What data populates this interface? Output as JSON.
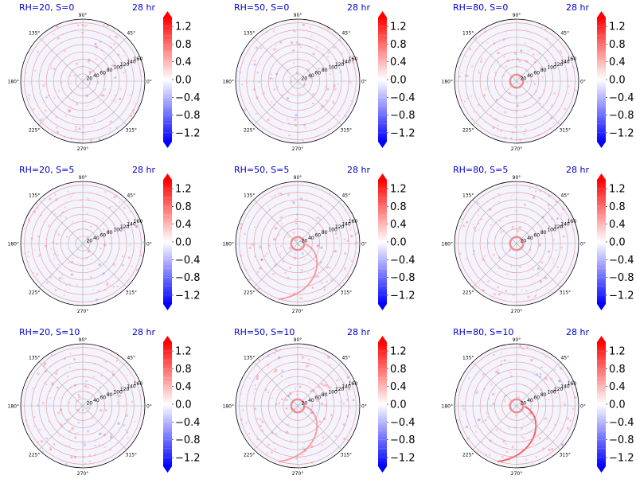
{
  "figure": {
    "colors": {
      "negative": "#0000ff",
      "zero": "#ffffff",
      "positive": "#ff0000",
      "title": "#0000cc",
      "polar_background": "#f3f4fd",
      "grid": "#b0b0b0",
      "rings": "#f08a8a"
    }
  },
  "chart_data": [
    {
      "type": "heatmap",
      "projection": "polar",
      "title": "RH=20, S=0",
      "time_label": "28 hr",
      "theta_tick_labels": [
        "0°",
        "45°",
        "90°",
        "135°",
        "180°",
        "225°",
        "270°",
        "315°"
      ],
      "r_tick_labels": [
        "20",
        "40",
        "60",
        "80",
        "100",
        "120",
        "140",
        "160"
      ],
      "r_range": [
        0,
        170
      ],
      "colorbar": {
        "ticks": [
          "1.2",
          "0.8",
          "0.4",
          "0.0",
          "−0.4",
          "−0.8",
          "−1.2"
        ],
        "range": [
          -1.4,
          1.4
        ],
        "extend": "both"
      },
      "field_values": "faint positive rings with scattered weak values, mostly near 0.0 to 0.2"
    },
    {
      "type": "heatmap",
      "projection": "polar",
      "title": "RH=50, S=0",
      "time_label": "28 hr",
      "theta_tick_labels": [
        "0°",
        "45°",
        "90°",
        "135°",
        "180°",
        "225°",
        "270°",
        "315°"
      ],
      "r_tick_labels": [
        "20",
        "40",
        "60",
        "80",
        "100",
        "120",
        "140",
        "160"
      ],
      "r_range": [
        0,
        170
      ],
      "colorbar": {
        "ticks": [
          "1.2",
          "0.8",
          "0.4",
          "0.0",
          "−0.4",
          "−0.8",
          "−1.2"
        ],
        "range": [
          -1.4,
          1.4
        ],
        "extend": "both"
      },
      "field_values": "weak positive speckle across the domain"
    },
    {
      "type": "heatmap",
      "projection": "polar",
      "title": "RH=80, S=0",
      "time_label": "28 hr",
      "theta_tick_labels": [
        "0°",
        "45°",
        "90°",
        "135°",
        "180°",
        "225°",
        "270°",
        "315°"
      ],
      "r_tick_labels": [
        "20",
        "40",
        "60",
        "80",
        "100",
        "120",
        "140",
        "160"
      ],
      "r_range": [
        0,
        170
      ],
      "colorbar": {
        "ticks": [
          "1.2",
          "0.8",
          "0.4",
          "0.0",
          "−0.4",
          "−0.8",
          "−1.2"
        ],
        "range": [
          -1.4,
          1.4
        ],
        "extend": "both"
      },
      "field_values": "positive ring near the center (~20) plus weak outer speckle"
    },
    {
      "type": "heatmap",
      "projection": "polar",
      "title": "RH=20, S=5",
      "time_label": "28 hr",
      "theta_tick_labels": [
        "0°",
        "45°",
        "90°",
        "135°",
        "180°",
        "225°",
        "270°",
        "315°"
      ],
      "r_tick_labels": [
        "20",
        "40",
        "60",
        "80",
        "100",
        "120",
        "140",
        "160"
      ],
      "r_range": [
        0,
        170
      ],
      "colorbar": {
        "ticks": [
          "1.2",
          "0.8",
          "0.4",
          "0.0",
          "−0.4",
          "−0.8",
          "−1.2"
        ],
        "range": [
          -1.4,
          1.4
        ],
        "extend": "both"
      },
      "field_values": "faint scattered positive values"
    },
    {
      "type": "heatmap",
      "projection": "polar",
      "title": "RH=50, S=5",
      "time_label": "28 hr",
      "theta_tick_labels": [
        "0°",
        "45°",
        "90°",
        "135°",
        "180°",
        "225°",
        "270°",
        "315°"
      ],
      "r_tick_labels": [
        "20",
        "40",
        "60",
        "80",
        "100",
        "120",
        "140",
        "160"
      ],
      "r_range": [
        0,
        170
      ],
      "colorbar": {
        "ticks": [
          "1.2",
          "0.8",
          "0.4",
          "0.0",
          "−0.4",
          "−0.8",
          "−1.2"
        ],
        "range": [
          -1.4,
          1.4
        ],
        "extend": "both"
      },
      "field_values": "positive features near the center and along the lower-right quadrant"
    },
    {
      "type": "heatmap",
      "projection": "polar",
      "title": "RH=80, S=5",
      "time_label": "28 hr",
      "theta_tick_labels": [
        "0°",
        "45°",
        "90°",
        "135°",
        "180°",
        "225°",
        "270°",
        "315°"
      ],
      "r_tick_labels": [
        "20",
        "40",
        "60",
        "80",
        "100",
        "120",
        "140",
        "160"
      ],
      "r_range": [
        0,
        170
      ],
      "colorbar": {
        "ticks": [
          "1.2",
          "0.8",
          "0.4",
          "0.0",
          "−0.4",
          "−0.8",
          "−1.2"
        ],
        "range": [
          -1.4,
          1.4
        ],
        "extend": "both"
      },
      "field_values": "small positive cluster near the center, otherwise near zero"
    },
    {
      "type": "heatmap",
      "projection": "polar",
      "title": "RH=20, S=10",
      "time_label": "28 hr",
      "theta_tick_labels": [
        "0°",
        "45°",
        "90°",
        "135°",
        "180°",
        "225°",
        "270°",
        "315°"
      ],
      "r_tick_labels": [
        "20",
        "40",
        "60",
        "80",
        "100",
        "120",
        "140",
        "160"
      ],
      "r_range": [
        0,
        170
      ],
      "colorbar": {
        "ticks": [
          "1.2",
          "0.8",
          "0.4",
          "0.0",
          "−0.4",
          "−0.8",
          "−1.2"
        ],
        "range": [
          -1.4,
          1.4
        ],
        "extend": "both"
      },
      "field_values": "scattered positive speckle with faint negatives on the right"
    },
    {
      "type": "heatmap",
      "projection": "polar",
      "title": "RH=50, S=10",
      "time_label": "28 hr",
      "theta_tick_labels": [
        "0°",
        "45°",
        "90°",
        "135°",
        "180°",
        "225°",
        "270°",
        "315°"
      ],
      "r_tick_labels": [
        "20",
        "40",
        "60",
        "80",
        "100",
        "120",
        "140",
        "160"
      ],
      "r_range": [
        0,
        170
      ],
      "colorbar": {
        "ticks": [
          "1.2",
          "0.8",
          "0.4",
          "0.0",
          "−0.4",
          "−0.8",
          "−1.2"
        ],
        "range": [
          -1.4,
          1.4
        ],
        "extend": "both"
      },
      "field_values": "positive spiral band near the center extending to the lower right"
    },
    {
      "type": "heatmap",
      "projection": "polar",
      "title": "RH=80, S=10",
      "time_label": "28 hr",
      "theta_tick_labels": [
        "0°",
        "45°",
        "90°",
        "135°",
        "180°",
        "225°",
        "270°",
        "315°"
      ],
      "r_tick_labels": [
        "20",
        "40",
        "60",
        "80",
        "100",
        "120",
        "140",
        "160"
      ],
      "r_range": [
        0,
        170
      ],
      "colorbar": {
        "ticks": [
          "1.2",
          "0.8",
          "0.4",
          "0.0",
          "−0.4",
          "−0.8",
          "−1.2"
        ],
        "range": [
          -1.4,
          1.4
        ],
        "extend": "both"
      },
      "field_values": "stronger positive spiral band toward the right and lower right"
    }
  ]
}
